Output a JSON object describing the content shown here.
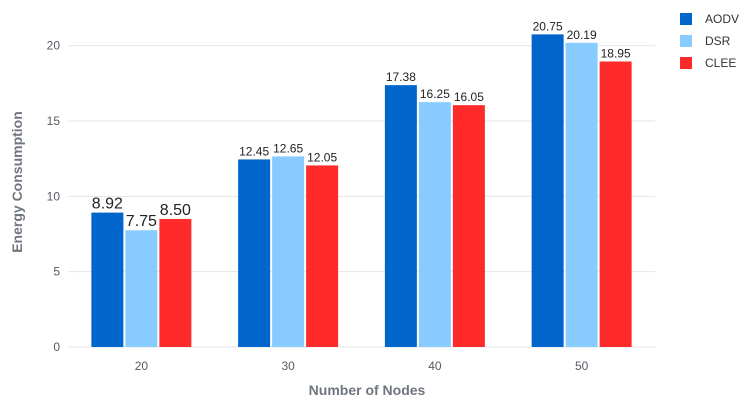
{
  "chart_data": {
    "type": "bar",
    "categories": [
      "20",
      "30",
      "40",
      "50"
    ],
    "series": [
      {
        "name": "AODV",
        "values": [
          8.92,
          12.45,
          17.38,
          20.75
        ],
        "labels": [
          "8.92",
          "12.45",
          "17.38",
          "20.75"
        ],
        "color": "#0066CC"
      },
      {
        "name": "DSR",
        "values": [
          7.75,
          12.65,
          16.25,
          20.19
        ],
        "labels": [
          "7.75",
          "12.65",
          "16.25",
          "20.19"
        ],
        "color": "#88CCFF"
      },
      {
        "name": "CLEE",
        "values": [
          8.5,
          12.05,
          16.05,
          18.95
        ],
        "labels": [
          "8.50",
          "12.05",
          "16.05",
          "18.95"
        ],
        "color": "#FF2A2A"
      }
    ],
    "xlabel": "Number of Nodes",
    "ylabel": "Energy Consumption",
    "ylim": [
      0,
      22.5
    ],
    "yticks": [
      "0",
      "5",
      "10",
      "15",
      "20"
    ],
    "grid": true,
    "legend_position": "top-right"
  }
}
